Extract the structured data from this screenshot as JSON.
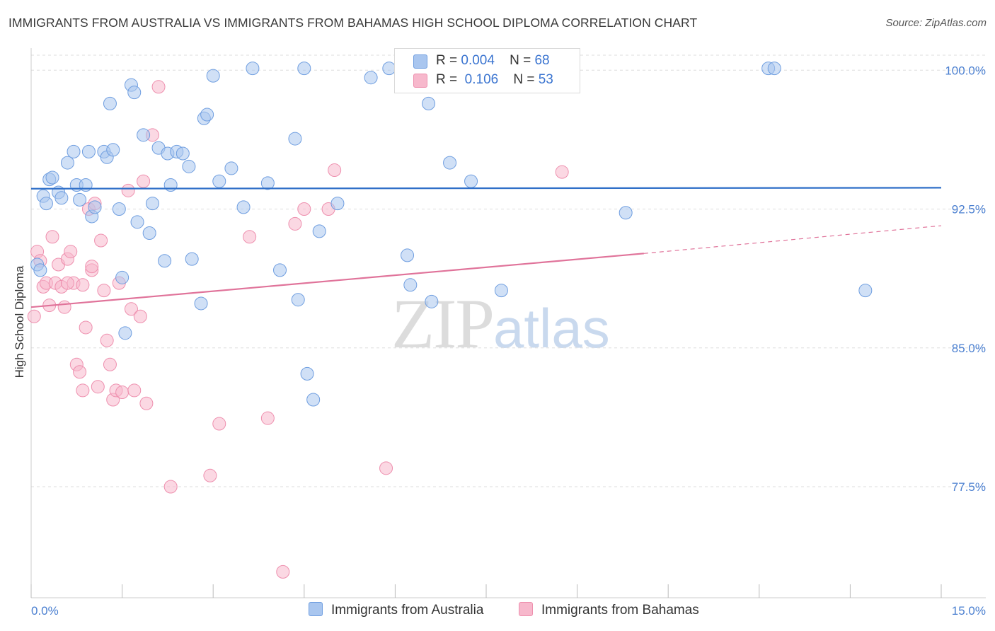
{
  "title": "IMMIGRANTS FROM AUSTRALIA VS IMMIGRANTS FROM BAHAMAS HIGH SCHOOL DIPLOMA CORRELATION CHART",
  "source": "Source: ZipAtlas.com",
  "watermark": {
    "zip": "ZIP",
    "atlas": "atlas"
  },
  "legend": {
    "australia": {
      "r_label": "R =",
      "r_value": "0.004",
      "n_label": "N =",
      "n_value": "68"
    },
    "bahamas": {
      "r_label": "R =",
      "r_value": "0.106",
      "n_label": "N =",
      "n_value": "53"
    }
  },
  "bottom_legend": {
    "australia": "Immigrants from Australia",
    "bahamas": "Immigrants from Bahamas"
  },
  "colors": {
    "australia_fill": "#a9c6ef",
    "australia_stroke": "#6f9ee0",
    "australia_line": "#2f6fc8",
    "bahamas_fill": "#f7b8cc",
    "bahamas_stroke": "#ee8fae",
    "bahamas_line": "#e0739a",
    "tick_label": "#4a7fd0",
    "grid": "#dddddd"
  },
  "chart_data": {
    "type": "scatter",
    "title": "IMMIGRANTS FROM AUSTRALIA VS IMMIGRANTS FROM BAHAMAS HIGH SCHOOL DIPLOMA CORRELATION CHART",
    "xlabel": "",
    "ylabel": "High School Diploma",
    "xlim": [
      0,
      15
    ],
    "ylim": [
      71.5,
      101.5
    ],
    "x_tick_labels": [
      "0.0%",
      "15.0%"
    ],
    "y_ticks": [
      77.5,
      85.0,
      92.5,
      100.0
    ],
    "y_tick_labels": [
      "77.5%",
      "85.0%",
      "92.5%",
      "100.0%"
    ],
    "grid": true,
    "legend_position": "top-center",
    "series": [
      {
        "name": "Immigrants from Australia",
        "r": 0.004,
        "n": 68,
        "trend": {
          "x": [
            0,
            15
          ],
          "y": [
            93.6,
            93.65
          ]
        },
        "points": [
          [
            0.1,
            89.5
          ],
          [
            0.15,
            89.2
          ],
          [
            0.2,
            93.2
          ],
          [
            0.25,
            92.8
          ],
          [
            0.3,
            94.1
          ],
          [
            0.35,
            94.2
          ],
          [
            0.45,
            93.4
          ],
          [
            0.5,
            93.1
          ],
          [
            0.6,
            95.0
          ],
          [
            0.7,
            95.6
          ],
          [
            0.75,
            93.8
          ],
          [
            0.8,
            93.0
          ],
          [
            0.9,
            93.8
          ],
          [
            0.95,
            95.6
          ],
          [
            1.0,
            92.1
          ],
          [
            1.05,
            92.6
          ],
          [
            1.2,
            95.6
          ],
          [
            1.25,
            95.3
          ],
          [
            1.3,
            98.2
          ],
          [
            1.35,
            95.7
          ],
          [
            1.45,
            92.5
          ],
          [
            1.5,
            88.8
          ],
          [
            1.55,
            85.8
          ],
          [
            1.65,
            99.2
          ],
          [
            1.7,
            98.8
          ],
          [
            1.75,
            91.8
          ],
          [
            1.85,
            96.5
          ],
          [
            1.95,
            91.2
          ],
          [
            2.0,
            92.8
          ],
          [
            2.1,
            95.8
          ],
          [
            2.2,
            89.7
          ],
          [
            2.25,
            95.5
          ],
          [
            2.3,
            93.8
          ],
          [
            2.4,
            95.6
          ],
          [
            2.5,
            95.5
          ],
          [
            2.6,
            94.8
          ],
          [
            2.65,
            89.8
          ],
          [
            2.8,
            87.4
          ],
          [
            2.85,
            97.4
          ],
          [
            2.9,
            97.6
          ],
          [
            3.0,
            99.7
          ],
          [
            3.1,
            94.0
          ],
          [
            3.3,
            94.7
          ],
          [
            3.5,
            92.6
          ],
          [
            3.65,
            100.1
          ],
          [
            3.9,
            93.9
          ],
          [
            4.1,
            89.2
          ],
          [
            4.35,
            96.3
          ],
          [
            4.4,
            87.6
          ],
          [
            4.5,
            100.1
          ],
          [
            4.55,
            83.6
          ],
          [
            4.65,
            82.2
          ],
          [
            4.75,
            91.3
          ],
          [
            5.05,
            92.8
          ],
          [
            5.6,
            99.6
          ],
          [
            5.9,
            100.1
          ],
          [
            6.2,
            90.0
          ],
          [
            6.25,
            88.4
          ],
          [
            6.55,
            98.2
          ],
          [
            6.6,
            87.5
          ],
          [
            6.9,
            95.0
          ],
          [
            7.25,
            94.0
          ],
          [
            7.75,
            88.1
          ],
          [
            9.8,
            92.3
          ],
          [
            12.15,
            100.1
          ],
          [
            12.25,
            100.1
          ],
          [
            13.75,
            88.1
          ],
          [
            7.6,
            99.5
          ]
        ]
      },
      {
        "name": "Immigrants from Bahamas",
        "r": 0.106,
        "n": 53,
        "trend": {
          "x": [
            0,
            10.1,
            15
          ],
          "y": [
            87.2,
            90.1,
            91.6
          ]
        },
        "points": [
          [
            0.05,
            86.7
          ],
          [
            0.1,
            90.2
          ],
          [
            0.15,
            89.7
          ],
          [
            0.2,
            88.3
          ],
          [
            0.25,
            88.5
          ],
          [
            0.3,
            87.3
          ],
          [
            0.35,
            91.0
          ],
          [
            0.4,
            88.5
          ],
          [
            0.45,
            89.5
          ],
          [
            0.5,
            88.3
          ],
          [
            0.55,
            87.2
          ],
          [
            0.6,
            89.8
          ],
          [
            0.65,
            90.2
          ],
          [
            0.7,
            88.5
          ],
          [
            0.75,
            84.1
          ],
          [
            0.8,
            83.7
          ],
          [
            0.85,
            82.7
          ],
          [
            0.9,
            86.1
          ],
          [
            0.95,
            92.5
          ],
          [
            1.0,
            89.2
          ],
          [
            1.05,
            92.8
          ],
          [
            1.1,
            82.9
          ],
          [
            1.15,
            90.8
          ],
          [
            1.2,
            88.1
          ],
          [
            1.25,
            85.4
          ],
          [
            1.3,
            84.1
          ],
          [
            1.35,
            82.2
          ],
          [
            1.4,
            82.7
          ],
          [
            1.45,
            88.5
          ],
          [
            1.5,
            82.6
          ],
          [
            1.6,
            93.5
          ],
          [
            1.65,
            87.1
          ],
          [
            1.7,
            82.7
          ],
          [
            1.8,
            86.7
          ],
          [
            1.85,
            94.0
          ],
          [
            1.9,
            82.0
          ],
          [
            2.0,
            96.5
          ],
          [
            2.1,
            99.1
          ],
          [
            2.3,
            77.5
          ],
          [
            2.95,
            78.1
          ],
          [
            3.1,
            80.9
          ],
          [
            3.6,
            91.0
          ],
          [
            3.9,
            81.2
          ],
          [
            4.15,
            72.9
          ],
          [
            4.35,
            91.7
          ],
          [
            4.5,
            92.5
          ],
          [
            4.9,
            92.5
          ],
          [
            5.0,
            94.6
          ],
          [
            5.85,
            78.5
          ],
          [
            8.75,
            94.5
          ],
          [
            0.85,
            88.4
          ],
          [
            1.0,
            89.4
          ],
          [
            0.6,
            88.5
          ]
        ]
      }
    ]
  }
}
